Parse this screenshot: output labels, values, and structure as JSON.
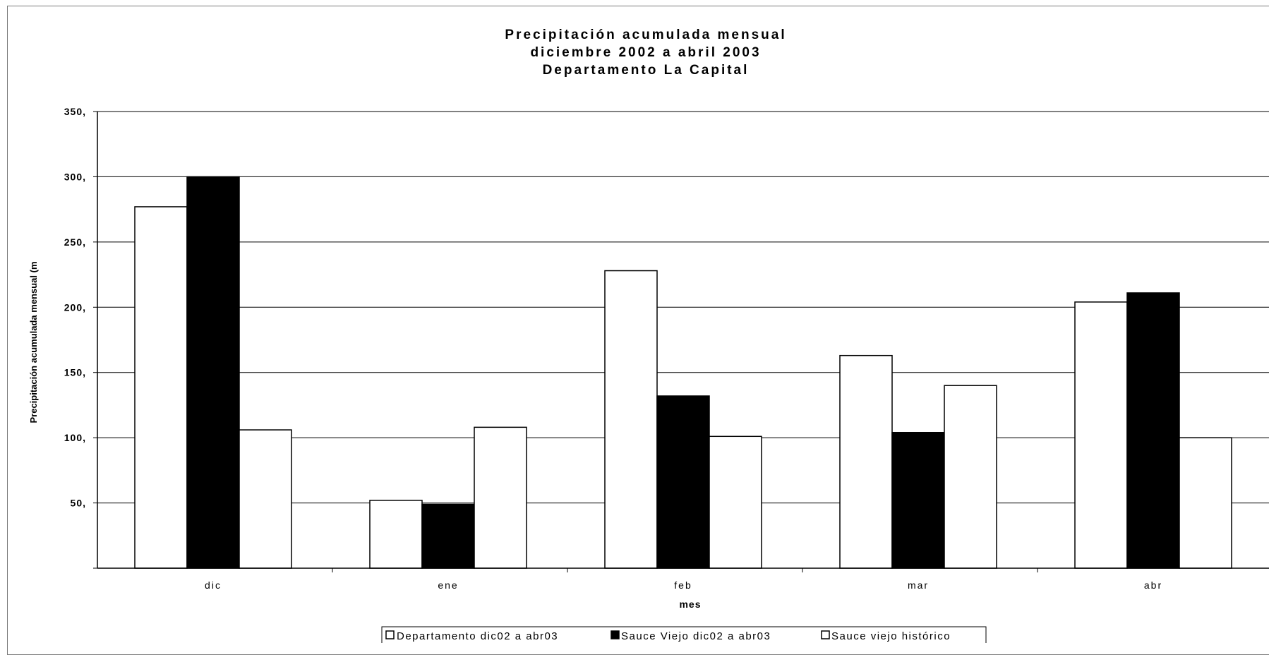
{
  "chart_data": {
    "type": "bar",
    "title_lines": [
      "Precipitación acumulada mensual",
      "diciembre 2002 a abril 2003",
      "Departamento La Capital"
    ],
    "xlabel": "mes",
    "ylabel": "Precipitación acumulada mensual (m",
    "categories": [
      "dic",
      "ene",
      "feb",
      "mar",
      "abr"
    ],
    "ylim": [
      0,
      350
    ],
    "yticks": [
      0,
      50,
      100,
      150,
      200,
      250,
      300,
      350
    ],
    "ytick_labels": [
      "",
      "50,",
      "100,",
      "150,",
      "200,",
      "250,",
      "300,",
      "350,"
    ],
    "grid": true,
    "legend_position": "bottom",
    "series": [
      {
        "name": "Departamento dic02 a abr03",
        "color": "#ffffff",
        "values": [
          277,
          52,
          228,
          163,
          204
        ]
      },
      {
        "name": "Sauce Viejo dic02 a abr03",
        "color": "#000000",
        "values": [
          300,
          49,
          132,
          104,
          211
        ]
      },
      {
        "name": "Sauce viejo histórico",
        "color": "#ffffff",
        "values": [
          106,
          108,
          101,
          140,
          100
        ]
      }
    ]
  }
}
